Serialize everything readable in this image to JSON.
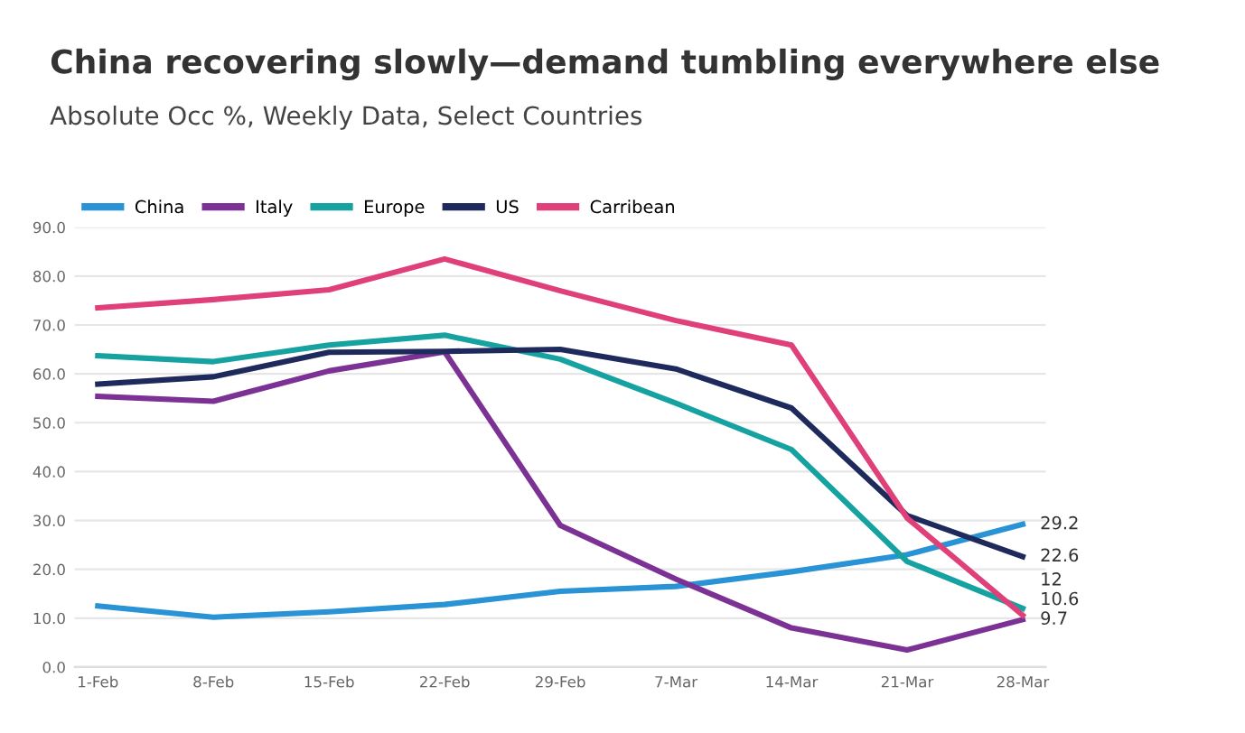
{
  "chart_data": {
    "type": "line",
    "title": "China recovering slowly—demand tumbling everywhere else",
    "subtitle": "Absolute Occ %, Weekly Data, Select Countries",
    "categories": [
      "1-Feb",
      "8-Feb",
      "15-Feb",
      "22-Feb",
      "29-Feb",
      "7-Mar",
      "14-Mar",
      "21-Mar",
      "28-Mar"
    ],
    "series": [
      {
        "name": "China",
        "color": "#2a93d5",
        "values": [
          12.5,
          10.2,
          11.3,
          12.8,
          15.5,
          16.5,
          19.5,
          23,
          29.2
        ],
        "value_labels": [
          null,
          null,
          null,
          null,
          null,
          null,
          null,
          null,
          "29.2"
        ]
      },
      {
        "name": "Italy",
        "color": "#7b3294",
        "values": [
          55.4,
          54.4,
          60.6,
          64.5,
          29,
          18,
          8,
          3.5,
          9.7
        ],
        "value_labels": [
          null,
          null,
          null,
          null,
          null,
          null,
          null,
          null,
          "9.7"
        ]
      },
      {
        "name": "Europe",
        "color": "#17a2a2",
        "values": [
          63.7,
          62.5,
          65.9,
          67.9,
          63,
          54,
          44.5,
          21.6,
          12
        ],
        "value_labels": [
          null,
          null,
          null,
          null,
          null,
          null,
          null,
          null,
          "12"
        ]
      },
      {
        "name": "US",
        "color": "#1f2a5c",
        "values": [
          57.9,
          59.4,
          64.4,
          64.6,
          65,
          61,
          53,
          31,
          22.6
        ],
        "value_labels": [
          null,
          null,
          null,
          null,
          null,
          null,
          null,
          null,
          "22.6"
        ]
      },
      {
        "name": "Carribean",
        "color": "#e0407a",
        "values": [
          73.5,
          75.2,
          77.2,
          83.5,
          77,
          70.9,
          65.9,
          30.5,
          10.6
        ],
        "value_labels": [
          null,
          null,
          null,
          null,
          null,
          null,
          null,
          null,
          "10.6"
        ]
      }
    ],
    "ylim": [
      0,
      90
    ],
    "yticks": [
      {
        "value": 0,
        "label": "0.0"
      },
      {
        "value": 10,
        "label": "10.0"
      },
      {
        "value": 20,
        "label": "20.0"
      },
      {
        "value": 30,
        "label": "30.0"
      },
      {
        "value": 40,
        "label": "40.0"
      },
      {
        "value": 50,
        "label": "50.0"
      },
      {
        "value": 60,
        "label": "60.0"
      },
      {
        "value": 70,
        "label": "70.0"
      },
      {
        "value": 80,
        "label": "80.0"
      },
      {
        "value": 90,
        "label": "90.0"
      }
    ],
    "grid": "y",
    "legend": "top left",
    "marker": "none",
    "line_style": "solid"
  }
}
